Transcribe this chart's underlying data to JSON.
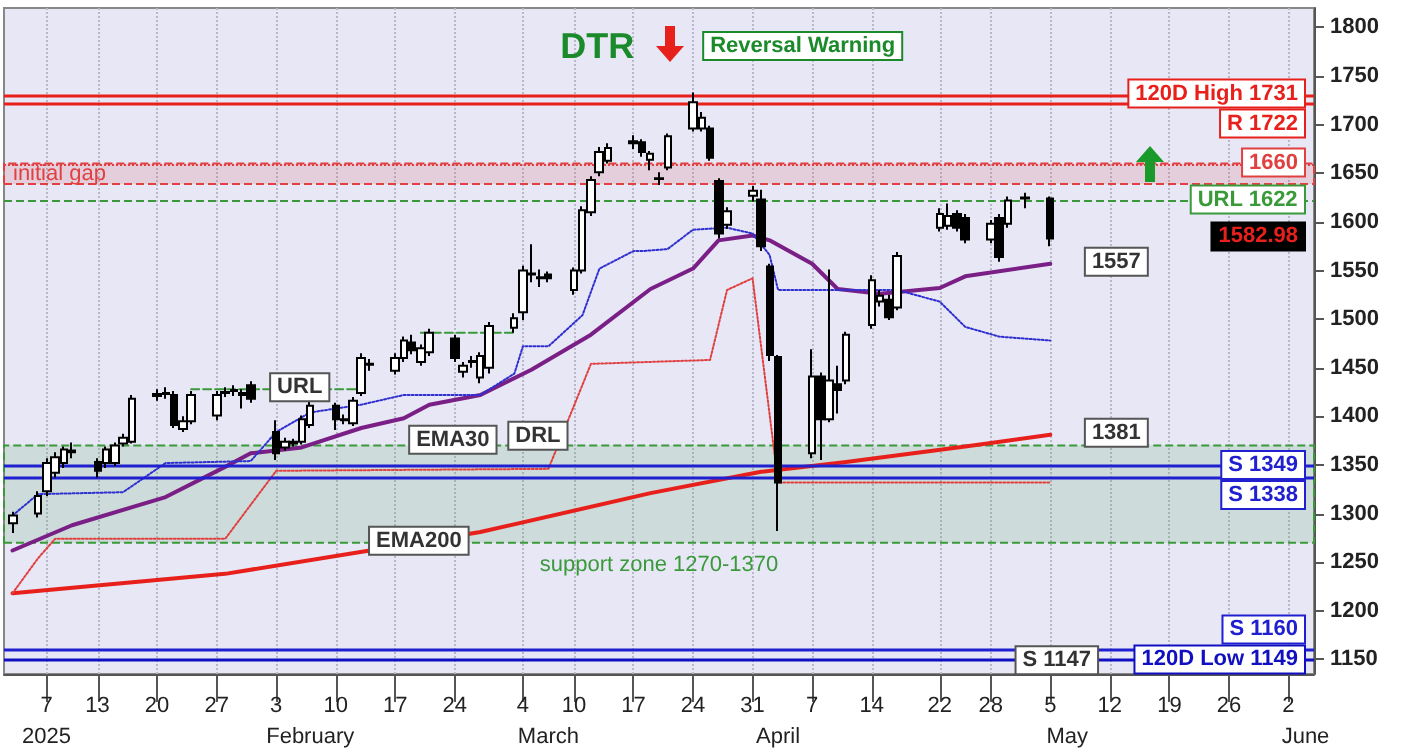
{
  "chart_data": {
    "type": "candlestick",
    "x": [
      "2025-01-03",
      "2025-01-06",
      "2025-01-07",
      "2025-01-08",
      "2025-01-09",
      "2025-01-10",
      "2025-01-13",
      "2025-01-14",
      "2025-01-15",
      "2025-01-16",
      "2025-01-17",
      "2025-01-20",
      "2025-01-21",
      "2025-01-22",
      "2025-01-23",
      "2025-01-24",
      "2025-01-27",
      "2025-01-28",
      "2025-01-29",
      "2025-01-30",
      "2025-01-31",
      "2025-02-03",
      "2025-02-04",
      "2025-02-05",
      "2025-02-06",
      "2025-02-07",
      "2025-02-10",
      "2025-02-11",
      "2025-02-12",
      "2025-02-13",
      "2025-02-14",
      "2025-02-17",
      "2025-02-18",
      "2025-02-19",
      "2025-02-20",
      "2025-02-21",
      "2025-02-24",
      "2025-02-25",
      "2025-02-26",
      "2025-02-27",
      "2025-02-28",
      "2025-03-03",
      "2025-03-04",
      "2025-03-05",
      "2025-03-06",
      "2025-03-07",
      "2025-03-10",
      "2025-03-11",
      "2025-03-12",
      "2025-03-13",
      "2025-03-14",
      "2025-03-17",
      "2025-03-18",
      "2025-03-19",
      "2025-03-20",
      "2025-03-21",
      "2025-03-24",
      "2025-03-25",
      "2025-03-26",
      "2025-03-27",
      "2025-03-28",
      "2025-03-31",
      "2025-04-01",
      "2025-04-02",
      "2025-04-03",
      "2025-04-07",
      "2025-04-08",
      "2025-04-09",
      "2025-04-10",
      "2025-04-11",
      "2025-04-14",
      "2025-04-15",
      "2025-04-16",
      "2025-04-17",
      "2025-04-22",
      "2025-04-23",
      "2025-04-24",
      "2025-04-25",
      "2025-04-28",
      "2025-04-29",
      "2025-04-30",
      "2025-05-02",
      "2025-05-05"
    ],
    "ohlc": [
      [
        1290,
        1302,
        1280,
        1298
      ],
      [
        1300,
        1323,
        1296,
        1318
      ],
      [
        1323,
        1357,
        1318,
        1352
      ],
      [
        1342,
        1363,
        1337,
        1358
      ],
      [
        1352,
        1369,
        1347,
        1366
      ],
      [
        1363,
        1373,
        1357,
        1365
      ],
      [
        1353,
        1357,
        1337,
        1344
      ],
      [
        1352,
        1369,
        1347,
        1366
      ],
      [
        1352,
        1373,
        1349,
        1370
      ],
      [
        1372,
        1382,
        1369,
        1378
      ],
      [
        1374,
        1422,
        1372,
        1418
      ],
      [
        1421,
        1428,
        1416,
        1423
      ],
      [
        1423,
        1430,
        1418,
        1424
      ],
      [
        1422,
        1426,
        1388,
        1391
      ],
      [
        1387,
        1400,
        1384,
        1395
      ],
      [
        1395,
        1426,
        1392,
        1422
      ],
      [
        1401,
        1426,
        1396,
        1422
      ],
      [
        1424,
        1430,
        1420,
        1425
      ],
      [
        1426,
        1432,
        1421,
        1427
      ],
      [
        1424,
        1428,
        1408,
        1422
      ],
      [
        1432,
        1436,
        1414,
        1418
      ],
      [
        1384,
        1396,
        1355,
        1362
      ],
      [
        1368,
        1378,
        1365,
        1374
      ],
      [
        1374,
        1377,
        1369,
        1372
      ],
      [
        1374,
        1401,
        1371,
        1397
      ],
      [
        1391,
        1416,
        1388,
        1411
      ],
      [
        1411,
        1414,
        1386,
        1397
      ],
      [
        1396,
        1402,
        1392,
        1397
      ],
      [
        1393,
        1420,
        1390,
        1416
      ],
      [
        1424,
        1465,
        1421,
        1460
      ],
      [
        1453,
        1459,
        1447,
        1454
      ],
      [
        1447,
        1465,
        1443,
        1460
      ],
      [
        1460,
        1482,
        1456,
        1478
      ],
      [
        1476,
        1484,
        1464,
        1468
      ],
      [
        1456,
        1474,
        1452,
        1470
      ],
      [
        1466,
        1490,
        1462,
        1486
      ],
      [
        1480,
        1484,
        1456,
        1460
      ],
      [
        1446,
        1456,
        1440,
        1452
      ],
      [
        1456,
        1462,
        1450,
        1457
      ],
      [
        1440,
        1466,
        1434,
        1462
      ],
      [
        1450,
        1497,
        1444,
        1493
      ],
      [
        1491,
        1506,
        1486,
        1501
      ],
      [
        1507,
        1555,
        1499,
        1550
      ],
      [
        1546,
        1577,
        1538,
        1547
      ],
      [
        1543,
        1551,
        1533,
        1542
      ],
      [
        1546,
        1549,
        1538,
        1542
      ],
      [
        1530,
        1553,
        1525,
        1550
      ],
      [
        1550,
        1616,
        1547,
        1612
      ],
      [
        1610,
        1647,
        1606,
        1643
      ],
      [
        1651,
        1677,
        1647,
        1672
      ],
      [
        1663,
        1681,
        1660,
        1676
      ],
      [
        1681,
        1689,
        1675,
        1683
      ],
      [
        1682,
        1685,
        1667,
        1672
      ],
      [
        1664,
        1673,
        1653,
        1670
      ],
      [
        1644,
        1651,
        1638,
        1645
      ],
      [
        1656,
        1691,
        1653,
        1688
      ],
      [
        1696,
        1733,
        1693,
        1723
      ],
      [
        1696,
        1713,
        1693,
        1707
      ],
      [
        1696,
        1699,
        1663,
        1666
      ],
      [
        1642,
        1645,
        1583,
        1588
      ],
      [
        1597,
        1615,
        1593,
        1611
      ],
      [
        1627,
        1637,
        1621,
        1632
      ],
      [
        1623,
        1633,
        1570,
        1575
      ],
      [
        1554,
        1557,
        1457,
        1463
      ],
      [
        1461,
        1463,
        1282,
        1332
      ],
      [
        1362,
        1469,
        1357,
        1441
      ],
      [
        1441,
        1445,
        1355,
        1397
      ],
      [
        1397,
        1551,
        1394,
        1437
      ],
      [
        1433,
        1452,
        1403,
        1427
      ],
      [
        1437,
        1487,
        1433,
        1484
      ],
      [
        1494,
        1545,
        1490,
        1540
      ],
      [
        1518,
        1530,
        1513,
        1524
      ],
      [
        1520,
        1525,
        1499,
        1502
      ],
      [
        1512,
        1569,
        1509,
        1565
      ],
      [
        1594,
        1614,
        1590,
        1608
      ],
      [
        1596,
        1619,
        1592,
        1606
      ],
      [
        1608,
        1612,
        1590,
        1594
      ],
      [
        1604,
        1608,
        1578,
        1582
      ],
      [
        1582,
        1602,
        1578,
        1598
      ],
      [
        1604,
        1608,
        1559,
        1564
      ],
      [
        1598,
        1626,
        1594,
        1622
      ],
      [
        1624,
        1630,
        1614,
        1625
      ],
      [
        1624,
        1626,
        1575,
        1582.98
      ]
    ],
    "series": [
      {
        "type": "line",
        "color": "#7a1f86",
        "line_style": "solid",
        "x": [
          "2025-01-03",
          "2025-01-10",
          "2025-01-21",
          "2025-01-28",
          "2025-01-31",
          "2025-02-06",
          "2025-02-13",
          "2025-02-18",
          "2025-02-21",
          "2025-02-27",
          "2025-03-05",
          "2025-03-12",
          "2025-03-19",
          "2025-03-24",
          "2025-03-27",
          "2025-03-31",
          "2025-04-02",
          "2025-04-07",
          "2025-04-10",
          "2025-04-15",
          "2025-04-22",
          "2025-04-25",
          "2025-05-05"
        ],
        "values": [
          1262,
          1288,
          1317,
          1348,
          1362,
          1368,
          1388,
          1398,
          1412,
          1422,
          1448,
          1484,
          1531,
          1552,
          1581,
          1586,
          1581,
          1557,
          1531,
          1526,
          1532,
          1544,
          1557
        ]
      },
      {
        "type": "line",
        "color": "#e8201c",
        "line_style": "solid",
        "x": [
          "2025-01-03",
          "2025-01-28",
          "2025-02-14",
          "2025-02-27",
          "2025-03-19",
          "2025-04-01",
          "2025-04-11",
          "2025-04-25",
          "2025-05-05"
        ],
        "values": [
          1218,
          1238,
          1262,
          1281,
          1321,
          1343,
          1353,
          1369,
          1381
        ]
      },
      {
        "type": "line",
        "color": "#3a9a3a",
        "line_style": "dashed",
        "x": [
          "2025-01-24",
          "2025-02-13",
          "2025-02-14",
          "2025-02-20",
          "2025-03-03"
        ],
        "values": [
          1428,
          1428,
          null,
          1486,
          1486
        ]
      },
      {
        "type": "line",
        "color": "#3030d0",
        "line_style": "dotted",
        "x": [
          "2025-01-03",
          "2025-01-06",
          "2025-01-16",
          "2025-01-21",
          "2025-01-31",
          "2025-02-03",
          "2025-02-07",
          "2025-02-13",
          "2025-02-18",
          "2025-02-27",
          "2025-03-03",
          "2025-03-04",
          "2025-03-07",
          "2025-03-11",
          "2025-03-13",
          "2025-03-17",
          "2025-03-18",
          "2025-03-21",
          "2025-03-24",
          "2025-03-28",
          "2025-03-31",
          "2025-04-02",
          "2025-04-03",
          "2025-04-17",
          "2025-04-22",
          "2025-04-25",
          "2025-04-29",
          "2025-05-05"
        ],
        "values": [
          1298,
          1320,
          1322,
          1352,
          1354,
          1384,
          1404,
          1412,
          1422,
          1422,
          1444,
          1472,
          1472,
          1504,
          1552,
          1570,
          1570,
          1572,
          1592,
          1594,
          1588,
          1566,
          1530,
          1530,
          1518,
          1492,
          1482,
          1478
        ]
      },
      {
        "type": "line",
        "color": "#e04040",
        "line_style": "dotted",
        "x": [
          "2025-01-03",
          "2025-01-06",
          "2025-01-08",
          "2025-01-28",
          "2025-02-03",
          "2025-03-07",
          "2025-03-12",
          "2025-03-26",
          "2025-03-28",
          "2025-03-31",
          "2025-04-03",
          "2025-05-05"
        ],
        "values": [
          1218,
          1254,
          1274,
          1274,
          1344,
          1346,
          1454,
          1458,
          1530,
          1542,
          1332,
          1332
        ]
      }
    ],
    "xlim": [
      "2025-01-02",
      "2025-06-05"
    ],
    "xticks": [
      {
        "value": "2025-01-07",
        "label": "7"
      },
      {
        "value": "2025-01-13",
        "label": "13"
      },
      {
        "value": "2025-01-20",
        "label": "20"
      },
      {
        "value": "2025-01-27",
        "label": "27"
      },
      {
        "value": "2025-02-03",
        "label": "3"
      },
      {
        "value": "2025-02-10",
        "label": "10"
      },
      {
        "value": "2025-02-17",
        "label": "17"
      },
      {
        "value": "2025-02-24",
        "label": "24"
      },
      {
        "value": "2025-03-04",
        "label": "4"
      },
      {
        "value": "2025-03-10",
        "label": "10"
      },
      {
        "value": "2025-03-17",
        "label": "17"
      },
      {
        "value": "2025-03-24",
        "label": "24"
      },
      {
        "value": "2025-03-31",
        "label": "31"
      },
      {
        "value": "2025-04-07",
        "label": "7"
      },
      {
        "value": "2025-04-14",
        "label": "14"
      },
      {
        "value": "2025-04-22",
        "label": "22"
      },
      {
        "value": "2025-04-28",
        "label": "28"
      },
      {
        "value": "2025-05-05",
        "label": "5"
      },
      {
        "value": "2025-05-12",
        "label": "12"
      },
      {
        "value": "2025-05-19",
        "label": "19"
      },
      {
        "value": "2025-05-26",
        "label": "26"
      },
      {
        "value": "2025-06-02",
        "label": "2"
      }
    ],
    "x2lim": [
      "2025-01-02",
      "2025-06-05"
    ],
    "x2ticks": [
      {
        "value": "2025-01-07",
        "label": "2025"
      },
      {
        "value": "2025-02-07",
        "label": "February"
      },
      {
        "value": "2025-03-07",
        "label": "March"
      },
      {
        "value": "2025-04-03",
        "label": "April"
      },
      {
        "value": "2025-05-07",
        "label": "May"
      },
      {
        "value": "2025-06-04",
        "label": "June"
      }
    ],
    "ylim": [
      1135,
      1820
    ],
    "yticks": [
      1150,
      1200,
      1250,
      1300,
      1350,
      1400,
      1450,
      1500,
      1550,
      1600,
      1650,
      1700,
      1750,
      1800
    ],
    "grid": "x",
    "ref_lines": [
      {
        "axis": "y",
        "value": 1731,
        "label": "120D High 1731",
        "color": "#e8201c",
        "line_style": "solid"
      },
      {
        "axis": "y",
        "value": 1722,
        "label": "R 1722",
        "color": "#e8201c",
        "line_style": "solid"
      },
      {
        "axis": "y",
        "value": 1660,
        "label": "1660",
        "color": "#e04040",
        "line_style": "dotted"
      },
      {
        "axis": "y",
        "value": 1622,
        "label": "URL 1622",
        "color": "#3a9a3a",
        "line_style": "dashed"
      },
      {
        "axis": "y",
        "value": 1349,
        "label": "S 1349",
        "color": "#2020d0",
        "line_style": "solid"
      },
      {
        "axis": "y",
        "value": 1338,
        "label": "S 1338",
        "color": "#2020d0",
        "line_style": "solid"
      },
      {
        "axis": "y",
        "value": 1149,
        "label": "120D Low 1149",
        "color": "#1010c0",
        "line_style": "solid"
      },
      {
        "axis": "y",
        "value": 1160,
        "label": "S 1160",
        "color": "#2020d0",
        "line_style": "solid"
      }
    ],
    "bands": [
      {
        "axis": "y",
        "from": 1639,
        "to": 1660,
        "label": "initial gap",
        "color": "#e04040"
      },
      {
        "axis": "y",
        "from": 1270,
        "to": 1370,
        "label": "support zone 1270-1370",
        "color": "#3a9a3a"
      }
    ],
    "annotations": [
      "DTR",
      "Reversal Warning",
      {
        "text": "EMA30",
        "x": "2025-02-24",
        "y": 1374
      },
      {
        "text": "EMA200",
        "x": "2025-02-20",
        "y": 1270
      },
      {
        "text": "URL",
        "x": "2025-02-06",
        "y": 1428
      },
      {
        "text": "DRL",
        "x": "2025-03-06",
        "y": 1378
      },
      {
        "text": "1557",
        "x": "2025-05-13",
        "y": 1557
      },
      {
        "text": "1381",
        "x": "2025-05-13",
        "y": 1381
      },
      "1582.98",
      {
        "text": "S 1147",
        "x": "2025-05-06",
        "y": 1147
      }
    ]
  }
}
